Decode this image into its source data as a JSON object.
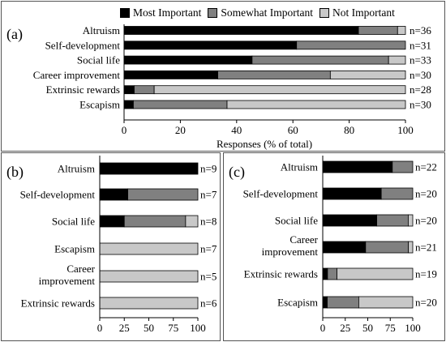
{
  "legend": [
    {
      "label": "Most Important",
      "color": "#000000"
    },
    {
      "label": "Somewhat Important",
      "color": "#808080"
    },
    {
      "label": "Not Important",
      "color": "#c8c8c8"
    }
  ],
  "xlabel_main": "Responses (% of total)",
  "chart_data": [
    {
      "panel": "(a)",
      "type": "bar",
      "orientation": "horizontal",
      "stacked": true,
      "categories": [
        "Altruism",
        "Self-development",
        "Social life",
        "Career improvement",
        "Extrinsic rewards",
        "Escapism"
      ],
      "counts": [
        "n=36",
        "n=31",
        "n=33",
        "n=30",
        "n=28",
        "n=30"
      ],
      "series": [
        {
          "name": "Most Important",
          "values": [
            83.3,
            61.3,
            45.5,
            33.3,
            3.6,
            3.3
          ]
        },
        {
          "name": "Somewhat Important",
          "values": [
            13.9,
            38.7,
            48.5,
            40.0,
            7.1,
            33.3
          ]
        },
        {
          "name": "Not Important",
          "values": [
            2.8,
            0,
            6.0,
            26.7,
            89.3,
            63.4
          ]
        }
      ],
      "xlim": [
        0,
        100
      ],
      "xticks": [
        0,
        20,
        40,
        60,
        80,
        100
      ],
      "xlabel": "Responses (% of total)"
    },
    {
      "panel": "(b)",
      "type": "bar",
      "orientation": "horizontal",
      "stacked": true,
      "categories": [
        "Altruism",
        "Self-development",
        "Social life",
        "Escapism",
        "Career improvement",
        "Extrinsic rewards"
      ],
      "counts": [
        "n=9",
        "n=7",
        "n=8",
        "n=7",
        "n=5",
        "n=6"
      ],
      "series": [
        {
          "name": "Most Important",
          "values": [
            100,
            28.6,
            25,
            0,
            0,
            0
          ]
        },
        {
          "name": "Somewhat Important",
          "values": [
            0,
            71.4,
            62.5,
            0,
            0,
            0
          ]
        },
        {
          "name": "Not Important",
          "values": [
            0,
            0,
            12.5,
            100,
            100,
            100
          ]
        }
      ],
      "xlim": [
        0,
        100
      ],
      "xticks": [
        0,
        25,
        50,
        75,
        100
      ]
    },
    {
      "panel": "(c)",
      "type": "bar",
      "orientation": "horizontal",
      "stacked": true,
      "categories": [
        "Altruism",
        "Self-development",
        "Social life",
        "Career improvement",
        "Extrinsic rewards",
        "Escapism"
      ],
      "counts": [
        "n=22",
        "n=20",
        "n=20",
        "n=21",
        "n=19",
        "n=20"
      ],
      "series": [
        {
          "name": "Most Important",
          "values": [
            77.3,
            65,
            60,
            47.6,
            5.3,
            5
          ]
        },
        {
          "name": "Somewhat Important",
          "values": [
            22.7,
            35,
            35,
            47.6,
            10.5,
            35
          ]
        },
        {
          "name": "Not Important",
          "values": [
            0,
            0,
            5,
            4.8,
            84.2,
            60
          ]
        }
      ],
      "xlim": [
        0,
        100
      ],
      "xticks": [
        0,
        25,
        50,
        75,
        100
      ]
    }
  ]
}
